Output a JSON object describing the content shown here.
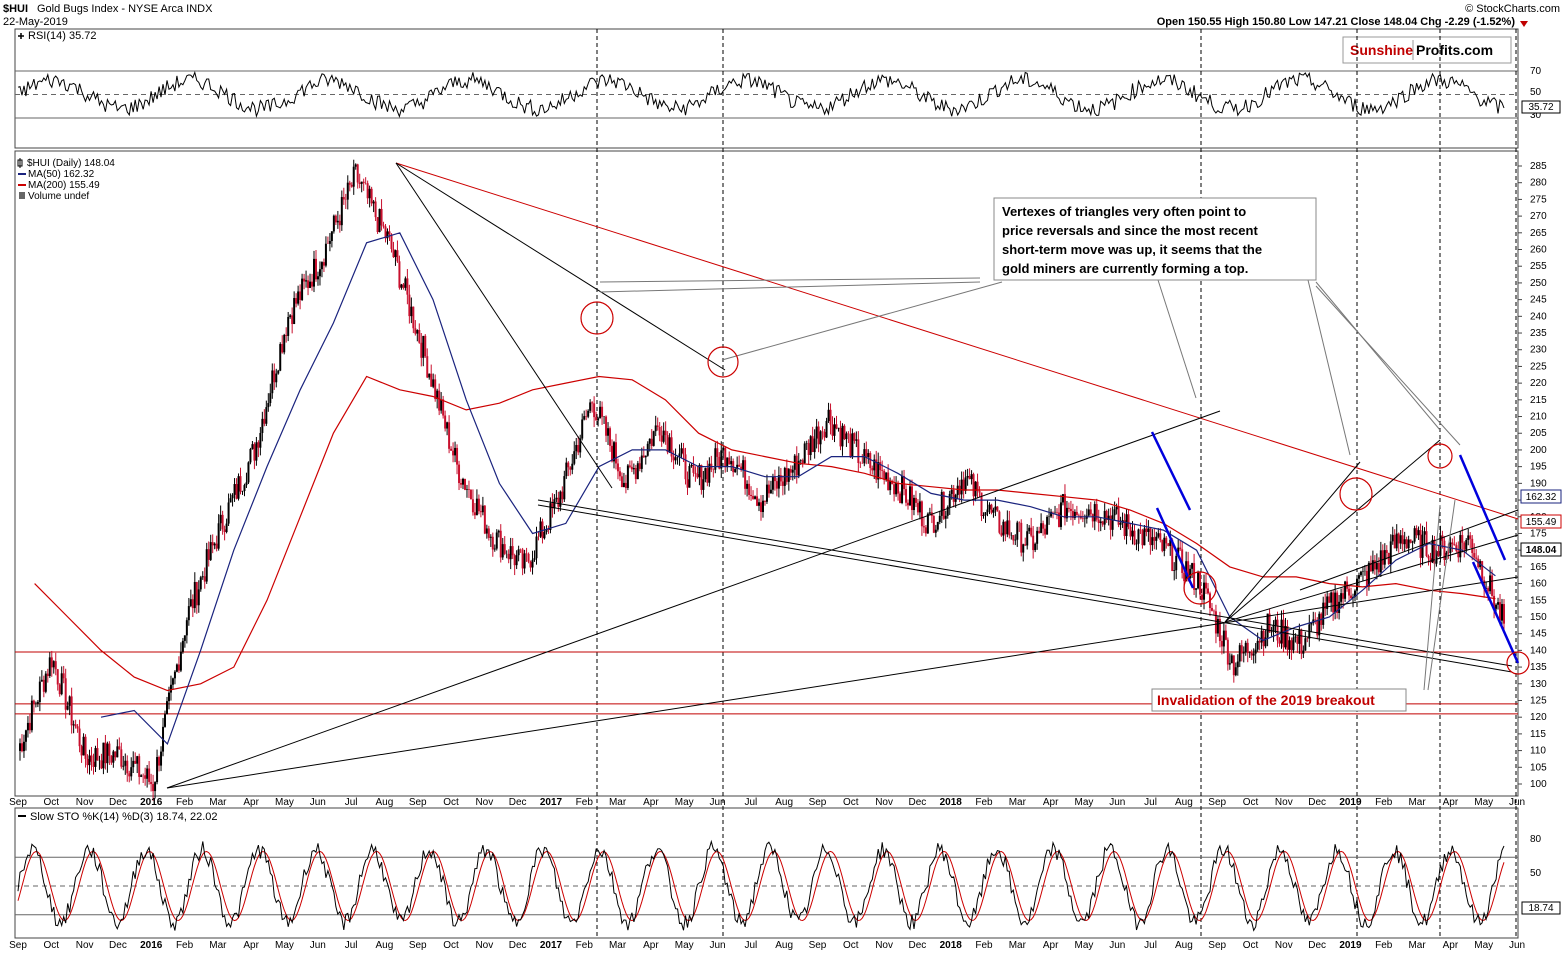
{
  "header": {
    "symbol": "$HUI",
    "name": "Gold Bugs Index - NYSE Arca INDX",
    "date": "22-May-2019",
    "source": "© StockCharts.com",
    "ohlc_text": "Open 150.55  High 150.80  Low 147.21  Close 148.04  Chg -2.29 (-1.52%)"
  },
  "logo": {
    "part1": "Sunshine",
    "part2": "Profits.com"
  },
  "rsi_panel": {
    "label": "RSI(14) 35.72",
    "last": "35.72",
    "levels": [
      "70",
      "50",
      "30"
    ]
  },
  "price_panel": {
    "legend": [
      "$HUI (Daily) 148.04",
      "MA(50) 162.32",
      "MA(200) 155.49",
      "Volume undef"
    ],
    "right_labels": {
      "ma50": "162.32",
      "ma200": "155.49",
      "close": "148.04"
    },
    "y_ticks": [
      "285",
      "280",
      "275",
      "270",
      "265",
      "260",
      "255",
      "250",
      "245",
      "240",
      "235",
      "230",
      "225",
      "220",
      "215",
      "210",
      "205",
      "200",
      "195",
      "190",
      "185",
      "180",
      "175",
      "170",
      "165",
      "160",
      "155",
      "150",
      "145",
      "140",
      "135",
      "130",
      "125",
      "120",
      "115",
      "110",
      "105",
      "100"
    ]
  },
  "x_axis": [
    "Sep",
    "Oct",
    "Nov",
    "Dec",
    "2016",
    "Feb",
    "Mar",
    "Apr",
    "May",
    "Jun",
    "Jul",
    "Aug",
    "Sep",
    "Oct",
    "Nov",
    "Dec",
    "2017",
    "Feb",
    "Mar",
    "Apr",
    "May",
    "Jun",
    "Jul",
    "Aug",
    "Sep",
    "Oct",
    "Nov",
    "Dec",
    "2018",
    "Feb",
    "Mar",
    "Apr",
    "May",
    "Jun",
    "Jul",
    "Aug",
    "Sep",
    "Oct",
    "Nov",
    "Dec",
    "2019",
    "Feb",
    "Mar",
    "Apr",
    "May",
    "Jun"
  ],
  "annotations": {
    "vertex_note": [
      "Vertexes of triangles very often point to",
      "price reversals and since the most recent",
      "short-term move was up, it seems that the",
      "gold miners are currently forming a top."
    ],
    "invalidation_note": "Invalidation of the 2019 breakout"
  },
  "sto_panel": {
    "label": "Slow STO %K(14) %D(3) 18.74, 22.02",
    "last": "18.74",
    "levels": [
      "80",
      "50",
      "20"
    ]
  },
  "colors": {
    "price_up": "#000000",
    "price_down": "#c8102e",
    "ma50": "#1a237e",
    "ma200": "#cc0000",
    "trend_blue": "#0000dd",
    "red_line": "#cc0000"
  },
  "chart_data": {
    "type": "line",
    "title": "$HUI Gold Bugs Index - NYSE Arca INDX",
    "xlabel": "",
    "ylabel": "",
    "x": [
      "Sep 2015",
      "Oct 2015",
      "Nov 2015",
      "Dec 2015",
      "Jan 2016",
      "Feb 2016",
      "Mar 2016",
      "Apr 2016",
      "May 2016",
      "Jun 2016",
      "Jul 2016",
      "Aug 2016",
      "Sep 2016",
      "Oct 2016",
      "Nov 2016",
      "Dec 2016",
      "Jan 2017",
      "Feb 2017",
      "Mar 2017",
      "Apr 2017",
      "May 2017",
      "Jun 2017",
      "Jul 2017",
      "Aug 2017",
      "Sep 2017",
      "Oct 2017",
      "Nov 2017",
      "Dec 2017",
      "Jan 2018",
      "Feb 2018",
      "Mar 2018",
      "Apr 2018",
      "May 2018",
      "Jun 2018",
      "Jul 2018",
      "Aug 2018",
      "Sep 2018",
      "Oct 2018",
      "Nov 2018",
      "Dec 2018",
      "Jan 2019",
      "Feb 2019",
      "Mar 2019",
      "Apr 2019",
      "May 2019"
    ],
    "series": [
      {
        "name": "$HUI (Daily)",
        "values": [
          110,
          138,
          108,
          109,
          100,
          150,
          177,
          200,
          240,
          258,
          282,
          262,
          230,
          195,
          175,
          165,
          185,
          215,
          190,
          208,
          190,
          200,
          185,
          195,
          210,
          197,
          190,
          178,
          192,
          178,
          172,
          183,
          182,
          176,
          170,
          160,
          136,
          147,
          142,
          155,
          163,
          174,
          170,
          173,
          148
        ]
      },
      {
        "name": "MA(50)",
        "values": [
          null,
          null,
          120,
          122,
          112,
          140,
          170,
          195,
          218,
          238,
          262,
          265,
          245,
          215,
          190,
          175,
          178,
          195,
          200,
          200,
          195,
          195,
          192,
          192,
          198,
          198,
          193,
          187,
          185,
          185,
          183,
          180,
          180,
          178,
          176,
          170,
          150,
          143,
          147,
          150,
          158,
          167,
          172,
          170,
          162.32
        ]
      },
      {
        "name": "MA(200)",
        "values": [
          160,
          150,
          140,
          132,
          128,
          130,
          135,
          155,
          180,
          205,
          222,
          218,
          216,
          212,
          214,
          218,
          220,
          222,
          221,
          215,
          205,
          200,
          198,
          196,
          195,
          193,
          190,
          189,
          188,
          188,
          187,
          186,
          185,
          182,
          178,
          172,
          165,
          162,
          162,
          160,
          159,
          160,
          158,
          157,
          155.49
        ]
      }
    ],
    "ylim": [
      98,
      287
    ],
    "panels": {
      "rsi": {
        "label": "RSI(14)",
        "last": 35.72,
        "levels": [
          30,
          50,
          70
        ]
      },
      "slow_sto": {
        "label": "Slow STO %K(14) %D(3)",
        "k_last": 18.74,
        "d_last": 22.02,
        "levels": [
          20,
          50,
          80
        ]
      }
    },
    "legend": "top-left",
    "grid": false
  }
}
